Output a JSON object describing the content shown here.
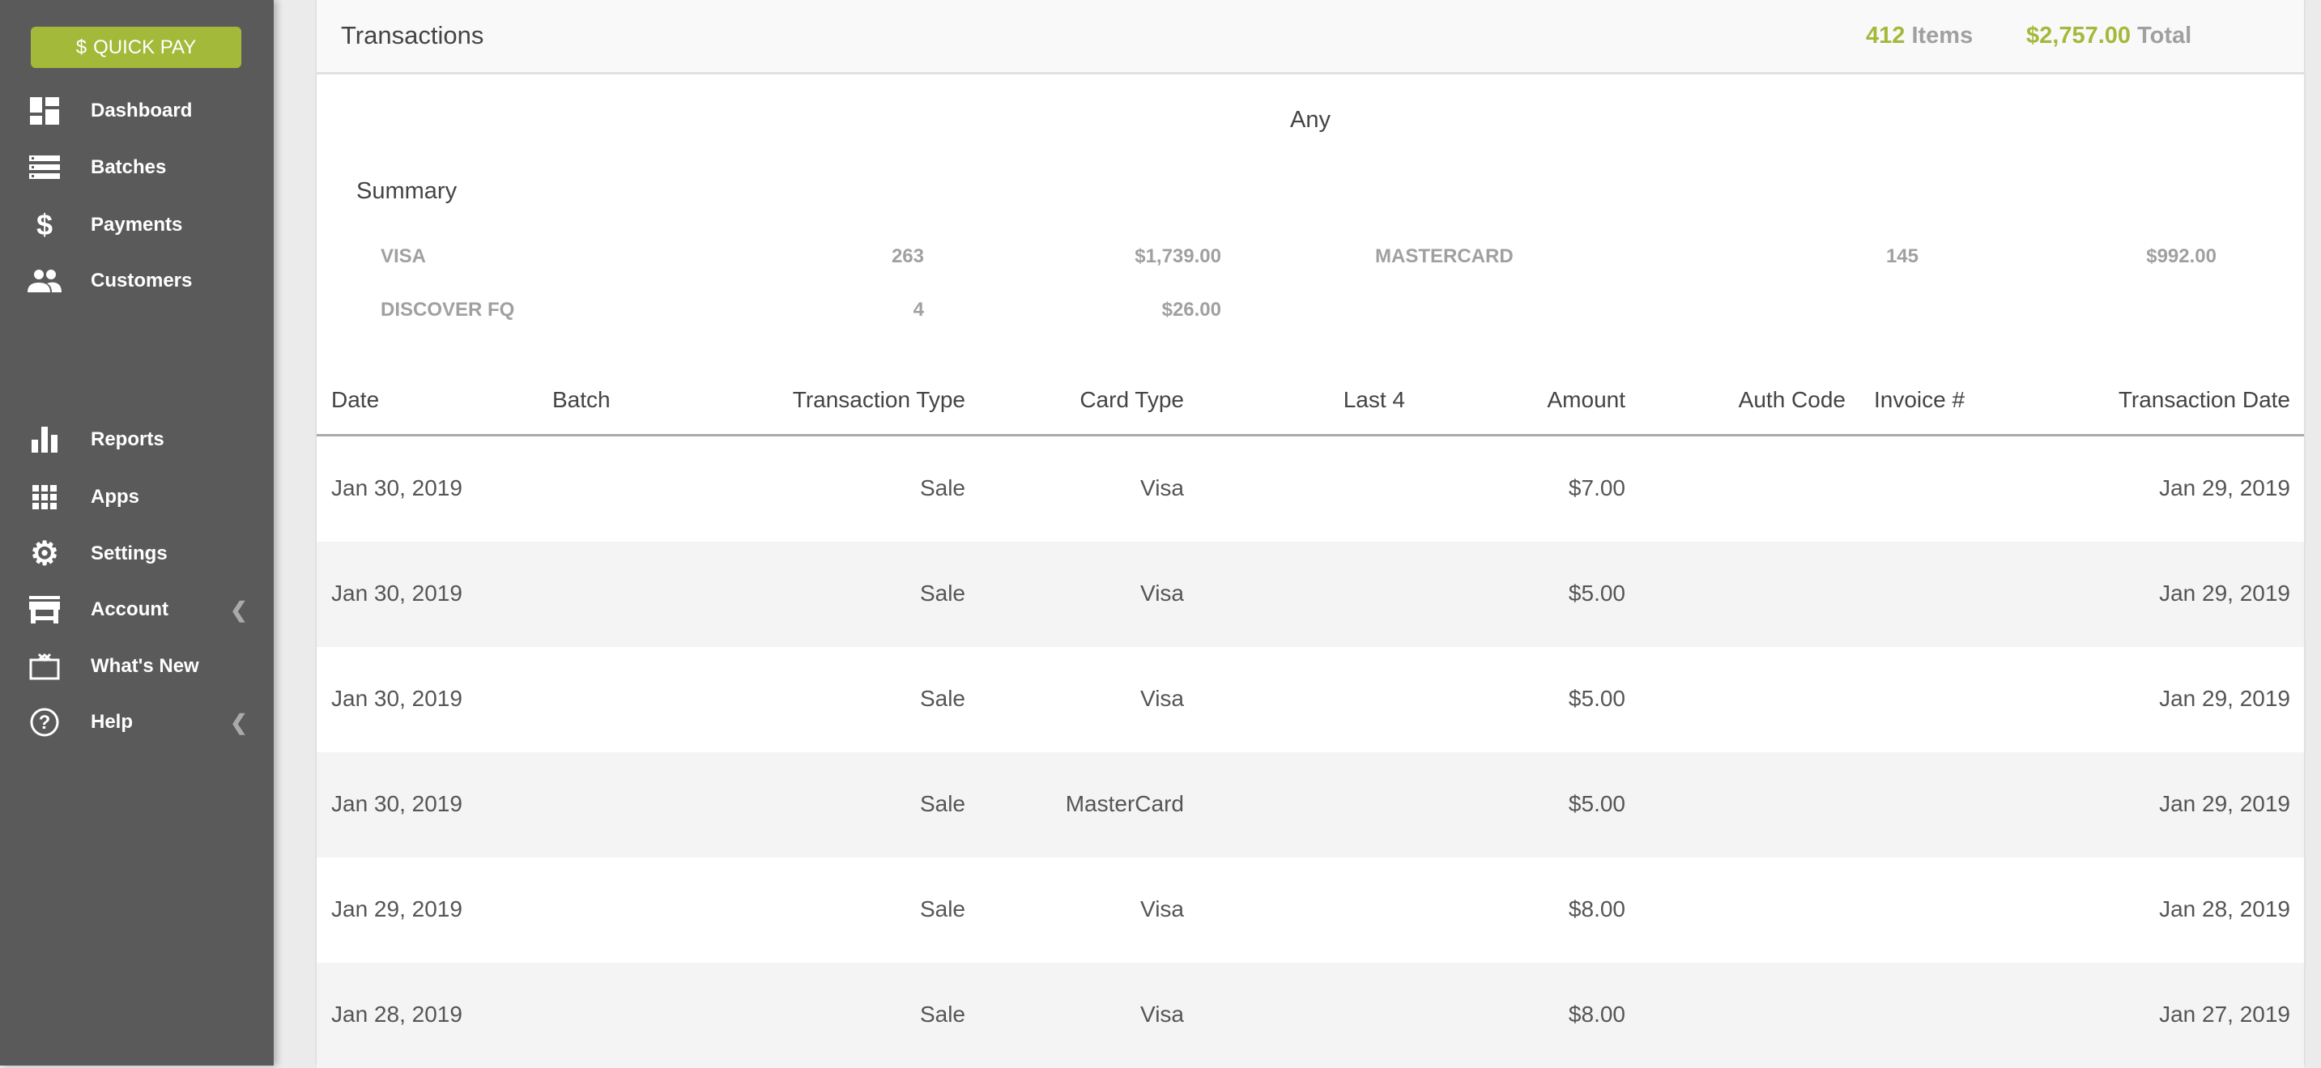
{
  "sidebar": {
    "quick_pay": {
      "icon": "$",
      "label": "QUICK PAY"
    },
    "items": [
      {
        "label": "Dashboard",
        "icon": "dashboard-icon"
      },
      {
        "label": "Batches",
        "icon": "batches-icon"
      },
      {
        "label": "Payments",
        "icon": "dollar-icon"
      },
      {
        "label": "Customers",
        "icon": "people-icon"
      },
      {
        "label": "Reports",
        "icon": "bar-chart-icon"
      },
      {
        "label": "Apps",
        "icon": "apps-grid-icon"
      },
      {
        "label": "Settings",
        "icon": "gear-icon"
      },
      {
        "label": "Account",
        "icon": "store-icon",
        "expandable": true
      },
      {
        "label": "What's New",
        "icon": "gift-icon"
      },
      {
        "label": "Help",
        "icon": "help-icon",
        "expandable": true
      }
    ]
  },
  "header": {
    "title": "Transactions",
    "items_count": "412",
    "items_label": "Items",
    "total_value": "$2,757.00",
    "total_label": "Total"
  },
  "filter": "Any",
  "summary": {
    "title": "Summary",
    "entries": [
      {
        "card": "VISA",
        "count": "263",
        "amount": "$1,739.00"
      },
      {
        "card": "MASTERCARD",
        "count": "145",
        "amount": "$992.00"
      },
      {
        "card": "DISCOVER FQ",
        "count": "4",
        "amount": "$26.00"
      }
    ]
  },
  "table": {
    "columns": [
      "Date",
      "Batch",
      "Transaction Type",
      "Card Type",
      "Last 4",
      "Amount",
      "Auth Code",
      "Invoice #",
      "Transaction Date"
    ],
    "rows": [
      {
        "date": "Jan 30, 2019",
        "type": "Sale",
        "card": "Visa",
        "amount": "$7.00",
        "tdate": "Jan 29, 2019"
      },
      {
        "date": "Jan 30, 2019",
        "type": "Sale",
        "card": "Visa",
        "amount": "$5.00",
        "tdate": "Jan 29, 2019"
      },
      {
        "date": "Jan 30, 2019",
        "type": "Sale",
        "card": "Visa",
        "amount": "$5.00",
        "tdate": "Jan 29, 2019"
      },
      {
        "date": "Jan 30, 2019",
        "type": "Sale",
        "card": "MasterCard",
        "amount": "$5.00",
        "tdate": "Jan 29, 2019"
      },
      {
        "date": "Jan 29, 2019",
        "type": "Sale",
        "card": "Visa",
        "amount": "$8.00",
        "tdate": "Jan 28, 2019"
      },
      {
        "date": "Jan 28, 2019",
        "type": "Sale",
        "card": "Visa",
        "amount": "$8.00",
        "tdate": "Jan 27, 2019"
      }
    ]
  },
  "colors": {
    "accent": "#a3b93a",
    "sidebar": "#5a5a5a"
  }
}
